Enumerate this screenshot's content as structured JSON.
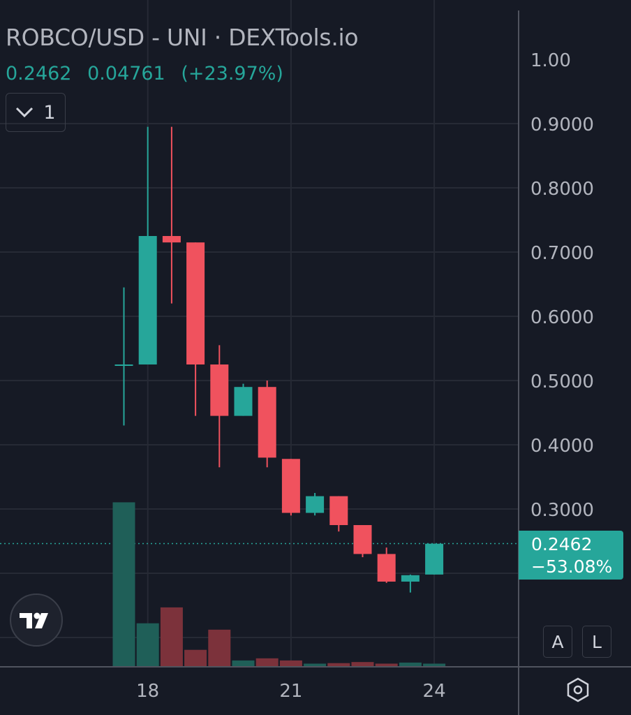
{
  "header": {
    "title": "ROBCO/USD - UNI · DEXTools.io",
    "last_price": "0.2462",
    "change": "0.04761",
    "change_pct": "(+23.97%)"
  },
  "collapse_button": {
    "label": "1",
    "icon": "chevron-down-icon"
  },
  "price_tag": {
    "price": "0.2462",
    "change": "−53.08%"
  },
  "scale_buttons": {
    "auto": "A",
    "log": "L"
  },
  "settings_icon": "hexagon-gear-icon",
  "logo": "tradingview-logo",
  "colors": {
    "background": "#161a25",
    "up": "#26a69a",
    "down": "#f0525e",
    "up_volume": "#1f5f58",
    "down_volume": "#7c323b",
    "grid": "#262a35",
    "text": "#b2b5be"
  },
  "chart_data": {
    "type": "candlestick",
    "title": "ROBCO/USD - UNI · DEXTools.io",
    "y_ticks": [
      "1.00",
      "0.9000",
      "0.8000",
      "0.7000",
      "0.6000",
      "0.5000",
      "0.4000",
      "0.3000"
    ],
    "x_ticks": [
      "18",
      "21",
      "24"
    ],
    "grid": true,
    "last_price_line": 0.2462,
    "candles": [
      {
        "o": 0.525,
        "h": 0.645,
        "l": 0.43,
        "c": 0.525,
        "v": 0.31
      },
      {
        "o": 0.525,
        "h": 0.895,
        "l": 0.525,
        "c": 0.725,
        "v": 0.082
      },
      {
        "o": 0.725,
        "h": 0.895,
        "l": 0.62,
        "c": 0.715,
        "v": 0.112
      },
      {
        "o": 0.715,
        "h": 0.715,
        "l": 0.445,
        "c": 0.525,
        "v": 0.032
      },
      {
        "o": 0.525,
        "h": 0.555,
        "l": 0.365,
        "c": 0.445,
        "v": 0.07
      },
      {
        "o": 0.445,
        "h": 0.495,
        "l": 0.445,
        "c": 0.49,
        "v": 0.012
      },
      {
        "o": 0.49,
        "h": 0.5,
        "l": 0.365,
        "c": 0.38,
        "v": 0.016
      },
      {
        "o": 0.378,
        "h": 0.378,
        "l": 0.29,
        "c": 0.294,
        "v": 0.012
      },
      {
        "o": 0.294,
        "h": 0.325,
        "l": 0.29,
        "c": 0.32,
        "v": 0.006
      },
      {
        "o": 0.32,
        "h": 0.32,
        "l": 0.265,
        "c": 0.275,
        "v": 0.007
      },
      {
        "o": 0.275,
        "h": 0.275,
        "l": 0.225,
        "c": 0.23,
        "v": 0.009
      },
      {
        "o": 0.23,
        "h": 0.24,
        "l": 0.185,
        "c": 0.187,
        "v": 0.006
      },
      {
        "o": 0.187,
        "h": 0.198,
        "l": 0.17,
        "c": 0.197,
        "v": 0.008
      },
      {
        "o": 0.198,
        "h": 0.246,
        "l": 0.198,
        "c": 0.246,
        "v": 0.006
      }
    ]
  }
}
